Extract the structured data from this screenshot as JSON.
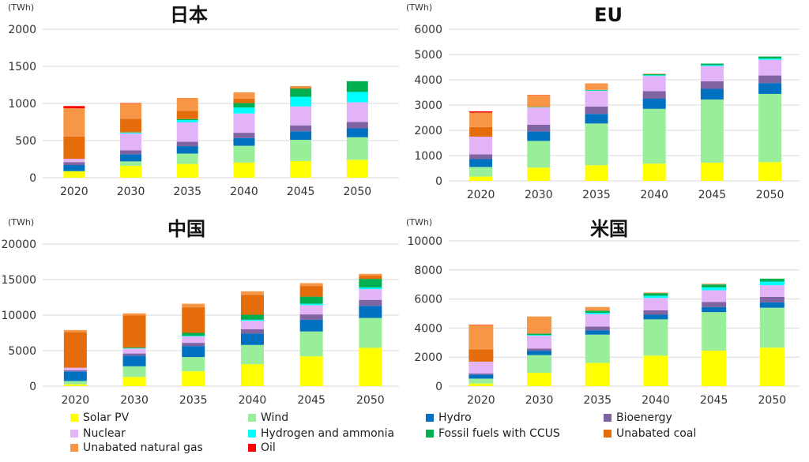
{
  "series_meta": [
    {
      "key": "solar",
      "name": "Solar PV",
      "color": "#ffff00"
    },
    {
      "key": "wind",
      "name": "Wind",
      "color": "#99ee99"
    },
    {
      "key": "hydro",
      "name": "Hydro",
      "color": "#0070c0"
    },
    {
      "key": "bio",
      "name": "Bioenergy",
      "color": "#8064a2"
    },
    {
      "key": "nuclear",
      "name": "Nuclear",
      "color": "#e3b3f7"
    },
    {
      "key": "h2",
      "name": "Hydrogen and ammonia",
      "color": "#00ffff"
    },
    {
      "key": "ccus",
      "name": "Fossil fuels with CCUS",
      "color": "#00b050"
    },
    {
      "key": "coal",
      "name": "Unabated coal",
      "color": "#e46c0a"
    },
    {
      "key": "gas",
      "name": "Unabated natural gas",
      "color": "#f79646"
    },
    {
      "key": "oil",
      "name": "Oil",
      "color": "#ff0000"
    }
  ],
  "chart_data": [
    {
      "type": "bar",
      "title": "日本",
      "unit": "(TWh)",
      "categories": [
        "2020",
        "2030",
        "2035",
        "2040",
        "2045",
        "2050"
      ],
      "ylim": [
        0,
        2000
      ],
      "yticks": [
        "0",
        "500",
        "1000",
        "1500",
        "2000"
      ],
      "series": [
        {
          "name": "Solar PV",
          "values": [
            85,
            160,
            185,
            205,
            225,
            240
          ]
        },
        {
          "name": "Wind",
          "values": [
            5,
            60,
            140,
            225,
            285,
            305
          ]
        },
        {
          "name": "Hydro",
          "values": [
            80,
            95,
            100,
            105,
            115,
            120
          ]
        },
        {
          "name": "Bioenergy",
          "values": [
            40,
            55,
            60,
            70,
            80,
            85
          ]
        },
        {
          "name": "Nuclear",
          "values": [
            45,
            225,
            260,
            260,
            255,
            265
          ]
        },
        {
          "name": "Hydrogen and ammonia",
          "values": [
            0,
            15,
            30,
            80,
            130,
            140
          ]
        },
        {
          "name": "Fossil fuels with CCUS",
          "values": [
            0,
            0,
            15,
            60,
            110,
            145
          ]
        },
        {
          "name": "Unabated coal",
          "values": [
            300,
            185,
            110,
            60,
            15,
            0
          ]
        },
        {
          "name": "Unabated natural gas",
          "values": [
            380,
            205,
            175,
            85,
            20,
            0
          ]
        },
        {
          "name": "Oil",
          "values": [
            30,
            5,
            0,
            0,
            0,
            0
          ]
        }
      ]
    },
    {
      "type": "bar",
      "title": "EU",
      "unit": "(TWh)",
      "categories": [
        "2020",
        "2030",
        "2035",
        "2040",
        "2045",
        "2050"
      ],
      "ylim": [
        0,
        6000
      ],
      "yticks": [
        "0",
        "1000",
        "2000",
        "3000",
        "4000",
        "5000",
        "6000"
      ],
      "series": [
        {
          "name": "Solar PV",
          "values": [
            170,
            520,
            620,
            680,
            720,
            740
          ]
        },
        {
          "name": "Wind",
          "values": [
            380,
            1060,
            1650,
            2170,
            2500,
            2700
          ]
        },
        {
          "name": "Hydro",
          "values": [
            310,
            370,
            380,
            400,
            420,
            430
          ]
        },
        {
          "name": "Bioenergy",
          "values": [
            190,
            270,
            290,
            300,
            300,
            300
          ]
        },
        {
          "name": "Nuclear",
          "values": [
            700,
            680,
            620,
            600,
            600,
            620
          ]
        },
        {
          "name": "Hydrogen and ammonia",
          "values": [
            0,
            10,
            20,
            30,
            40,
            50
          ]
        },
        {
          "name": "Fossil fuels with CCUS",
          "values": [
            0,
            10,
            20,
            40,
            60,
            80
          ]
        },
        {
          "name": "Unabated coal",
          "values": [
            380,
            0,
            0,
            0,
            0,
            0
          ]
        },
        {
          "name": "Unabated natural gas",
          "values": [
            570,
            470,
            260,
            20,
            0,
            0
          ]
        },
        {
          "name": "Oil",
          "values": [
            50,
            10,
            0,
            0,
            0,
            0
          ]
        }
      ]
    },
    {
      "type": "bar",
      "title": "中国",
      "unit": "(TWh)",
      "categories": [
        "2020",
        "2030",
        "2035",
        "2040",
        "2045",
        "2050"
      ],
      "ylim": [
        0,
        20000
      ],
      "yticks": [
        "0",
        "5000",
        "10000",
        "15000",
        "20000"
      ],
      "series": [
        {
          "name": "Solar PV",
          "values": [
            260,
            1300,
            2100,
            3100,
            4200,
            5400
          ]
        },
        {
          "name": "Wind",
          "values": [
            470,
            1500,
            2000,
            2700,
            3500,
            4200
          ]
        },
        {
          "name": "Hydro",
          "values": [
            1350,
            1500,
            1550,
            1600,
            1650,
            1700
          ]
        },
        {
          "name": "Bioenergy",
          "values": [
            150,
            300,
            450,
            600,
            750,
            850
          ]
        },
        {
          "name": "Nuclear",
          "values": [
            370,
            700,
            900,
            1200,
            1300,
            1500
          ]
        },
        {
          "name": "Hydrogen and ammonia",
          "values": [
            0,
            50,
            100,
            150,
            200,
            250
          ]
        },
        {
          "name": "Fossil fuels with CCUS",
          "values": [
            0,
            100,
            400,
            700,
            1000,
            1200
          ]
        },
        {
          "name": "Unabated coal",
          "values": [
            5000,
            4500,
            3600,
            2800,
            1500,
            400
          ]
        },
        {
          "name": "Unabated natural gas",
          "values": [
            300,
            300,
            500,
            500,
            400,
            300
          ]
        },
        {
          "name": "Oil",
          "values": [
            0,
            0,
            0,
            0,
            0,
            0
          ]
        }
      ]
    },
    {
      "type": "bar",
      "title": "米国",
      "unit": "(TWh)",
      "categories": [
        "2020",
        "2030",
        "2035",
        "2040",
        "2045",
        "2050"
      ],
      "ylim": [
        0,
        10000
      ],
      "yticks": [
        "0",
        "2000",
        "4000",
        "6000",
        "8000",
        "10000"
      ],
      "series": [
        {
          "name": "Solar PV",
          "values": [
            180,
            920,
            1600,
            2100,
            2450,
            2650
          ]
        },
        {
          "name": "Wind",
          "values": [
            340,
            1220,
            1950,
            2500,
            2650,
            2750
          ]
        },
        {
          "name": "Hydro",
          "values": [
            280,
            300,
            300,
            320,
            350,
            370
          ]
        },
        {
          "name": "Bioenergy",
          "values": [
            70,
            150,
            250,
            300,
            350,
            380
          ]
        },
        {
          "name": "Nuclear",
          "values": [
            820,
            880,
            850,
            850,
            800,
            800
          ]
        },
        {
          "name": "Hydrogen and ammonia",
          "values": [
            0,
            50,
            100,
            150,
            200,
            250
          ]
        },
        {
          "name": "Fossil fuels with CCUS",
          "values": [
            0,
            100,
            150,
            180,
            200,
            200
          ]
        },
        {
          "name": "Unabated coal",
          "values": [
            840,
            0,
            0,
            0,
            0,
            0
          ]
        },
        {
          "name": "Unabated natural gas",
          "values": [
            1690,
            1180,
            250,
            50,
            50,
            0
          ]
        },
        {
          "name": "Oil",
          "values": [
            20,
            0,
            0,
            0,
            0,
            0
          ]
        }
      ]
    }
  ]
}
